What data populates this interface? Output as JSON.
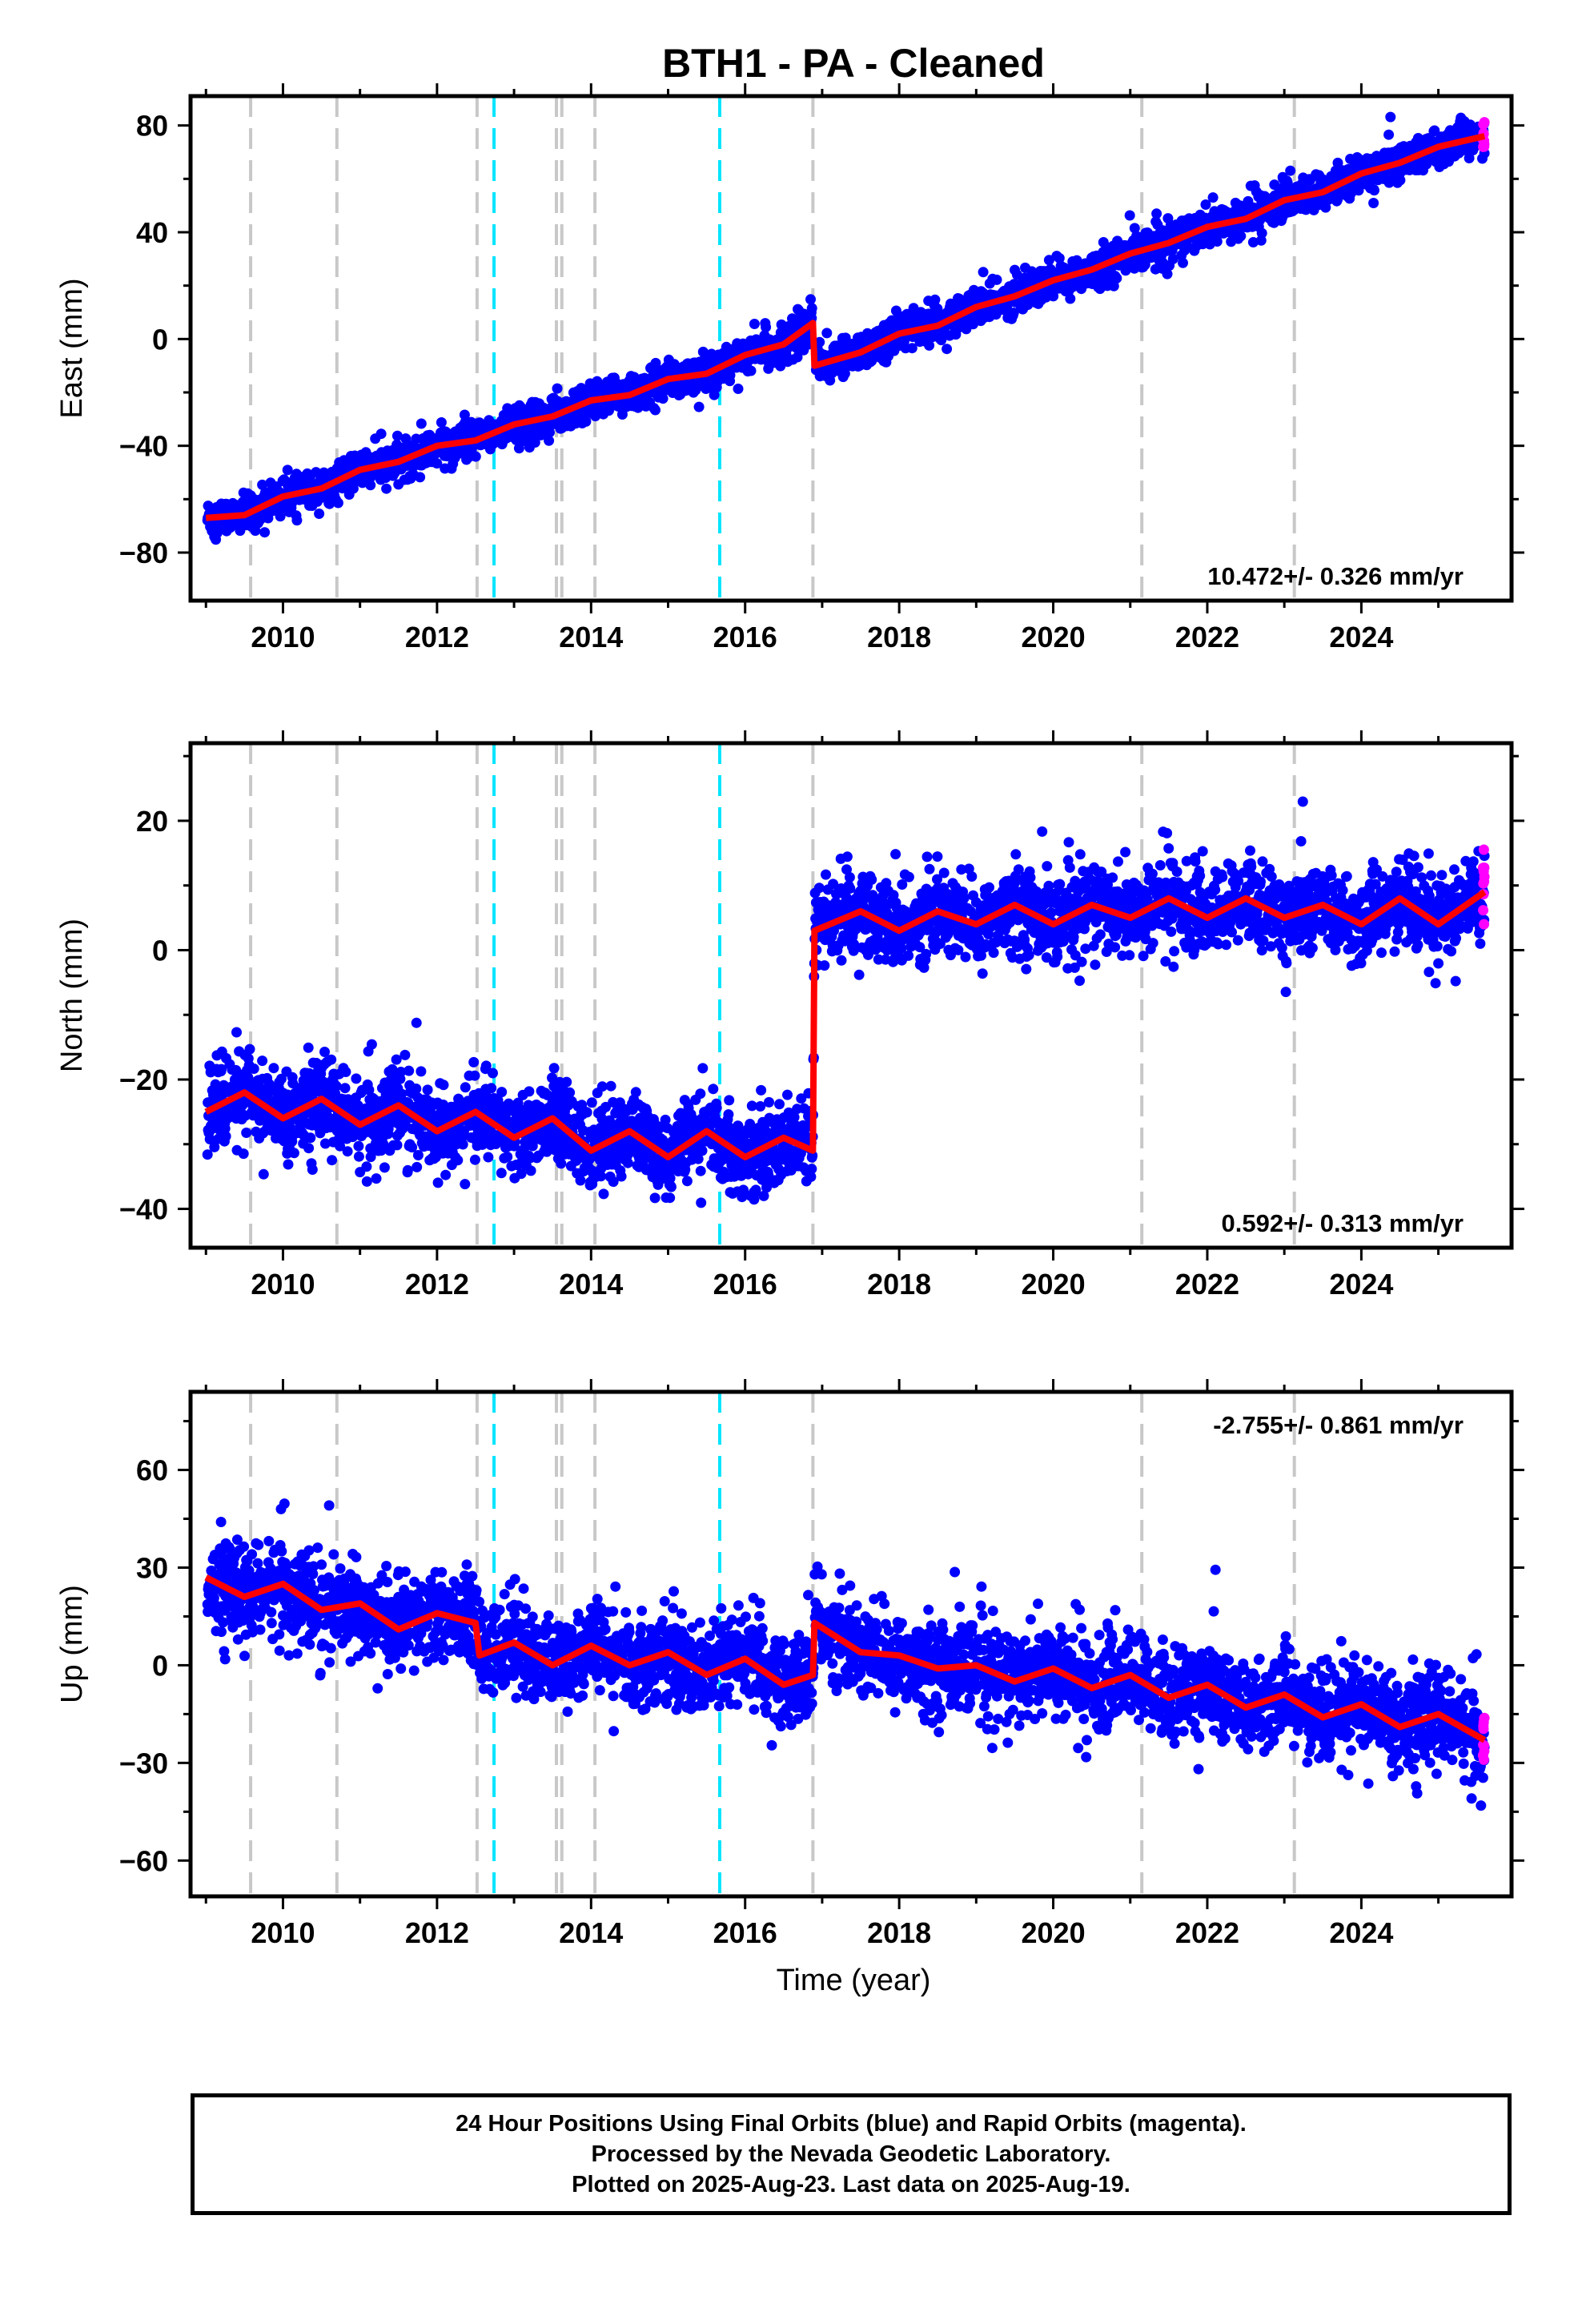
{
  "title": "BTH1  - PA - Cleaned",
  "xlabel": "Time (year)",
  "footer": {
    "line1": "24 Hour Positions Using Final Orbits (blue) and Rapid Orbits (magenta).",
    "line2": "Processed by the Nevada Geodetic Laboratory.",
    "line3": "Plotted on 2025-Aug-23. Last data on 2025-Aug-19."
  },
  "colors": {
    "final_points": "#0000ff",
    "rapid_points": "#ff00ff",
    "model_line": "#ff0000",
    "equipment_change_lines": "#c8c8c8",
    "earthquake_lines": "#00e5ff"
  },
  "chart_data": [
    {
      "type": "scatter",
      "panel": "East",
      "ylabel": "East (mm)",
      "rate_label": "10.472+/- 0.326 mm/yr",
      "xlim": [
        2008.8,
        2025.95
      ],
      "ylim": [
        -98,
        91
      ],
      "xticks": [
        2010,
        2012,
        2014,
        2016,
        2018,
        2020,
        2022,
        2024
      ],
      "yticks": [
        80,
        40,
        0,
        -40,
        -80
      ],
      "grid": false,
      "series": [
        {
          "kind": "model",
          "x": [
            2009.0,
            2009.5,
            2010.0,
            2010.5,
            2011.0,
            2011.5,
            2012.0,
            2012.5,
            2013.0,
            2013.5,
            2014.0,
            2014.5,
            2015.0,
            2015.5,
            2016.0,
            2016.5,
            2016.88,
            2016.9,
            2017.5,
            2018.0,
            2018.5,
            2019.0,
            2019.5,
            2020.0,
            2020.5,
            2021.0,
            2021.5,
            2022.0,
            2022.5,
            2023.0,
            2023.5,
            2024.0,
            2024.5,
            2025.0,
            2025.6
          ],
          "y": [
            -67,
            -66,
            -59,
            -56,
            -49,
            -46,
            -40,
            -38,
            -32,
            -29,
            -23,
            -21,
            -15,
            -13,
            -6,
            -2,
            6,
            -10,
            -5,
            2,
            5,
            12,
            16,
            22,
            26,
            32,
            36,
            42,
            45,
            52,
            55,
            62,
            66,
            72,
            76
          ]
        }
      ],
      "reference_lines": {
        "equipment_change": [
          2009.58,
          2010.7,
          2012.52,
          2013.55,
          2013.62,
          2014.05,
          2016.88,
          2021.15,
          2023.13
        ],
        "earthquake": [
          2012.74,
          2015.67
        ]
      }
    },
    {
      "type": "scatter",
      "panel": "North",
      "ylabel": "North (mm)",
      "rate_label": "0.592+/- 0.313 mm/yr",
      "xlim": [
        2008.8,
        2025.95
      ],
      "ylim": [
        -46,
        32
      ],
      "xticks": [
        2010,
        2012,
        2014,
        2016,
        2018,
        2020,
        2022,
        2024
      ],
      "yticks": [
        20,
        0,
        -20,
        -40
      ],
      "grid": false,
      "series": [
        {
          "kind": "model",
          "x": [
            2009.0,
            2009.5,
            2010.0,
            2010.5,
            2011.0,
            2011.5,
            2012.0,
            2012.5,
            2013.0,
            2013.5,
            2014.0,
            2014.5,
            2015.0,
            2015.5,
            2016.0,
            2016.5,
            2016.88,
            2016.9,
            2017.5,
            2018.0,
            2018.5,
            2019.0,
            2019.5,
            2020.0,
            2020.5,
            2021.0,
            2021.5,
            2022.0,
            2022.5,
            2023.0,
            2023.5,
            2024.0,
            2024.5,
            2025.0,
            2025.6
          ],
          "y": [
            -25,
            -22,
            -26,
            -23,
            -27,
            -24,
            -28,
            -25,
            -29,
            -26,
            -31,
            -28,
            -32,
            -28,
            -32,
            -29,
            -31,
            3,
            6,
            3,
            6,
            4,
            7,
            4,
            7,
            5,
            8,
            5,
            8,
            5,
            7,
            4,
            8,
            4,
            9
          ]
        }
      ],
      "reference_lines": {
        "equipment_change": [
          2009.58,
          2010.7,
          2012.52,
          2013.55,
          2013.62,
          2014.05,
          2016.88,
          2021.15,
          2023.13
        ],
        "earthquake": [
          2012.74,
          2015.67
        ]
      }
    },
    {
      "type": "scatter",
      "panel": "Up",
      "ylabel": "Up (mm)",
      "rate_label": "-2.755+/- 0.861 mm/yr",
      "xlim": [
        2008.8,
        2025.95
      ],
      "ylim": [
        -71,
        84
      ],
      "xticks": [
        2010,
        2012,
        2014,
        2016,
        2018,
        2020,
        2022,
        2024
      ],
      "yticks": [
        60,
        30,
        0,
        -30,
        -60
      ],
      "grid": false,
      "series": [
        {
          "kind": "model",
          "x": [
            2009.0,
            2009.5,
            2010.0,
            2010.5,
            2011.0,
            2011.5,
            2012.0,
            2012.5,
            2012.55,
            2013.0,
            2013.5,
            2014.0,
            2014.5,
            2015.0,
            2015.5,
            2016.0,
            2016.5,
            2016.88,
            2016.9,
            2017.5,
            2018.0,
            2018.5,
            2019.0,
            2019.5,
            2020.0,
            2020.5,
            2021.0,
            2021.5,
            2022.0,
            2022.5,
            2023.0,
            2023.5,
            2024.0,
            2024.5,
            2025.0,
            2025.6
          ],
          "y": [
            27,
            21,
            25,
            17,
            19,
            11,
            16,
            13,
            3,
            7,
            0,
            6,
            0,
            4,
            -3,
            2,
            -6,
            -3,
            13,
            4,
            3,
            -1,
            0,
            -5,
            -1,
            -7,
            -3,
            -10,
            -6,
            -13,
            -9,
            -16,
            -12,
            -19,
            -15,
            -23
          ]
        }
      ],
      "reference_lines": {
        "equipment_change": [
          2009.58,
          2010.7,
          2012.52,
          2013.55,
          2013.62,
          2014.05,
          2016.88,
          2021.15,
          2023.13
        ],
        "earthquake": [
          2012.74,
          2015.67
        ]
      }
    }
  ]
}
